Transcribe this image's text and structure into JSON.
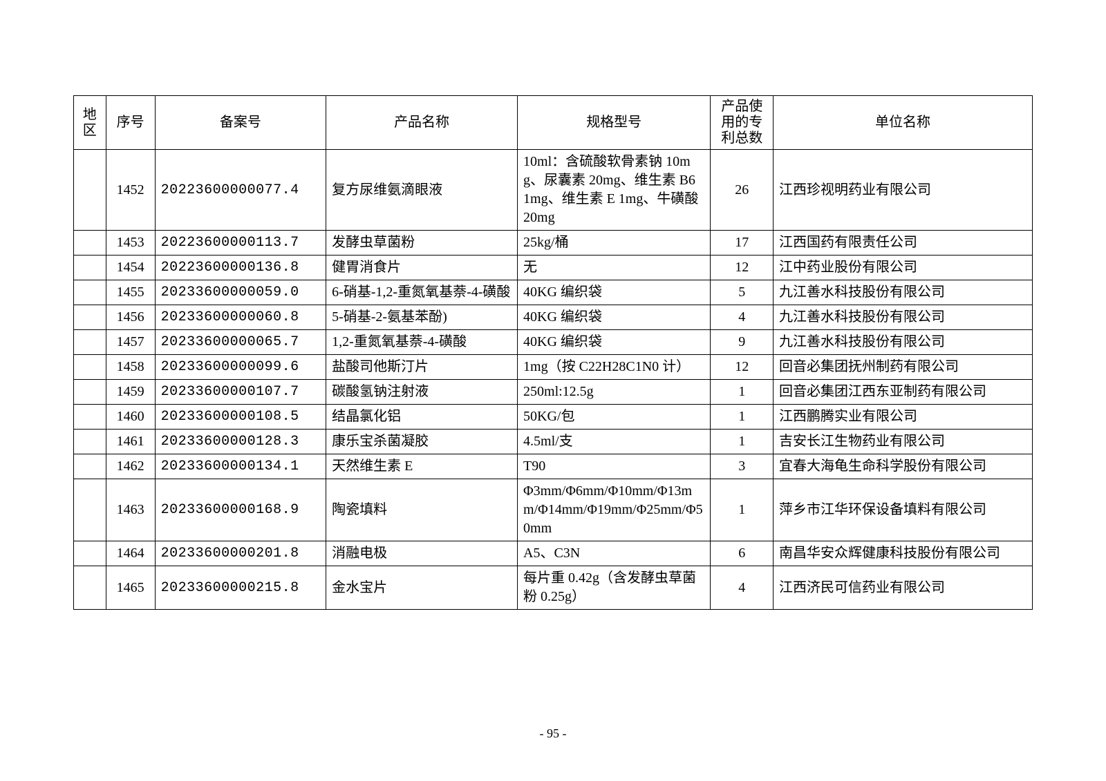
{
  "page_number": "- 95 -",
  "table": {
    "columns": [
      {
        "key": "region",
        "label": "地区"
      },
      {
        "key": "seq",
        "label": "序号"
      },
      {
        "key": "filing",
        "label": "备案号"
      },
      {
        "key": "name",
        "label": "产品名称"
      },
      {
        "key": "spec",
        "label": "规格型号"
      },
      {
        "key": "patent",
        "label": "产品使用的专利总数"
      },
      {
        "key": "unit",
        "label": "单位名称"
      }
    ],
    "rows": [
      {
        "region": "",
        "seq": "1452",
        "filing": "20223600000077.4",
        "name": "复方尿维氨滴眼液",
        "spec": "10ml：含硫酸软骨素钠 10mg、尿囊素 20mg、维生素 B6 1mg、维生素 E 1mg、牛磺酸 20mg",
        "patent": "26",
        "unit": "江西珍视明药业有限公司"
      },
      {
        "region": "",
        "seq": "1453",
        "filing": "20223600000113.7",
        "name": "发酵虫草菌粉",
        "spec": "25kg/桶",
        "patent": "17",
        "unit": "江西国药有限责任公司"
      },
      {
        "region": "",
        "seq": "1454",
        "filing": "20223600000136.8",
        "name": "健胃消食片",
        "spec": "无",
        "patent": "12",
        "unit": "江中药业股份有限公司"
      },
      {
        "region": "",
        "seq": "1455",
        "filing": "20233600000059.0",
        "name": "6-硝基-1,2-重氮氧基萘-4-磺酸",
        "spec": "40KG 编织袋",
        "patent": "5",
        "unit": "九江善水科技股份有限公司"
      },
      {
        "region": "",
        "seq": "1456",
        "filing": "20233600000060.8",
        "name": "5-硝基-2-氨基苯酚)",
        "spec": "40KG 编织袋",
        "patent": "4",
        "unit": "九江善水科技股份有限公司"
      },
      {
        "region": "",
        "seq": "1457",
        "filing": "20233600000065.7",
        "name": "1,2-重氮氧基萘-4-磺酸",
        "spec": "40KG 编织袋",
        "patent": "9",
        "unit": "九江善水科技股份有限公司"
      },
      {
        "region": "",
        "seq": "1458",
        "filing": "20233600000099.6",
        "name": "盐酸司他斯汀片",
        "spec": "1mg（按 C22H28C1N0 计）",
        "patent": "12",
        "unit": "回音必集团抚州制药有限公司"
      },
      {
        "region": "",
        "seq": "1459",
        "filing": "20233600000107.7",
        "name": "碳酸氢钠注射液",
        "spec": "250ml:12.5g",
        "patent": "1",
        "unit": "回音必集团江西东亚制药有限公司"
      },
      {
        "region": "",
        "seq": "1460",
        "filing": "20233600000108.5",
        "name": "结晶氯化铝",
        "spec": "50KG/包",
        "patent": "1",
        "unit": "江西鹏腾实业有限公司"
      },
      {
        "region": "",
        "seq": "1461",
        "filing": "20233600000128.3",
        "name": "康乐宝杀菌凝胶",
        "spec": "4.5ml/支",
        "patent": "1",
        "unit": "吉安长江生物药业有限公司"
      },
      {
        "region": "",
        "seq": "1462",
        "filing": "20233600000134.1",
        "name": "天然维生素 E",
        "spec": "T90",
        "patent": "3",
        "unit": "宜春大海龟生命科学股份有限公司"
      },
      {
        "region": "",
        "seq": "1463",
        "filing": "20233600000168.9",
        "name": "陶瓷填料",
        "spec": "Φ3mm/Φ6mm/Φ10mm/Φ13mm/Φ14mm/Φ19mm/Φ25mm/Φ50mm",
        "patent": "1",
        "unit": "萍乡市江华环保设备填料有限公司"
      },
      {
        "region": "",
        "seq": "1464",
        "filing": "20233600000201.8",
        "name": "消融电极",
        "spec": "A5、C3N",
        "patent": "6",
        "unit": "南昌华安众辉健康科技股份有限公司"
      },
      {
        "region": "",
        "seq": "1465",
        "filing": "20233600000215.8",
        "name": "金水宝片",
        "spec": "每片重 0.42g（含发酵虫草菌粉 0.25g）",
        "patent": "4",
        "unit": "江西济民可信药业有限公司"
      }
    ]
  }
}
